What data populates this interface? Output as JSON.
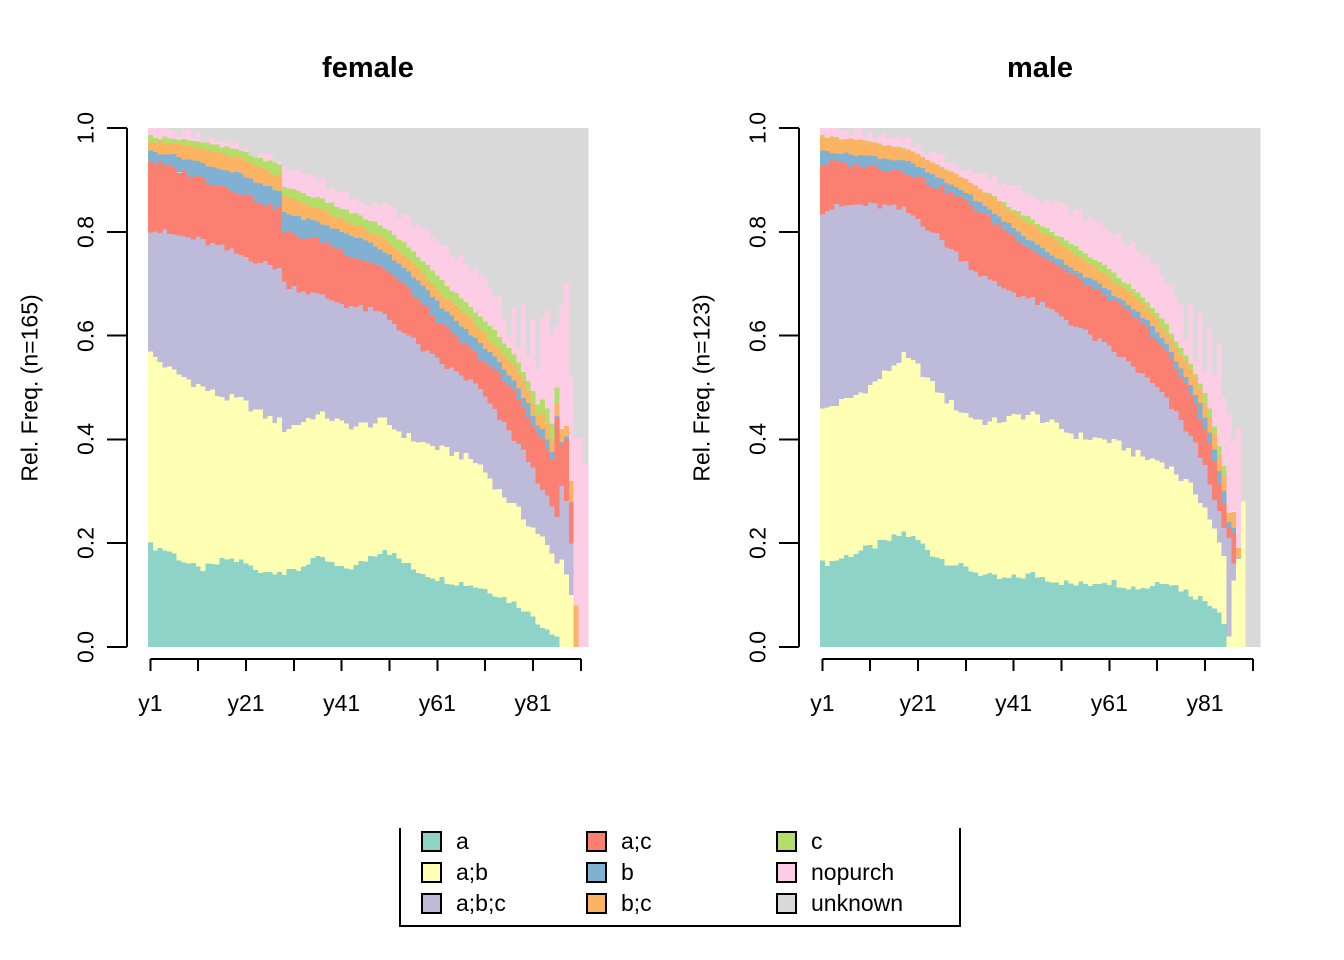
{
  "figure": {
    "description": "Two-panel stacked relative-frequency bar chart (sequence state distribution plot) with shared bottom legend",
    "background": "#ffffff"
  },
  "palette": {
    "a": "#8DD3C7",
    "a;b": "#FFFFB3",
    "a;b;c": "#BEBADA",
    "a;c": "#FB8072",
    "b": "#80B1D3",
    "b;c": "#FDB462",
    "c": "#B3DE69",
    "nopurch": "#FCCDE5",
    "unknown": "#D9D9D9"
  },
  "legend": {
    "rows": [
      [
        "a",
        "a;c",
        "c"
      ],
      [
        "a;b",
        "b",
        "nopurch"
      ],
      [
        "a;b;c",
        "b;c",
        "unknown"
      ]
    ]
  },
  "chart_data": [
    {
      "type": "bar",
      "stacked": true,
      "relative": true,
      "title": "female",
      "ylabel": "Rel. Freq. (n=165)",
      "n": 165,
      "n_columns": 92,
      "x_tick_positions": [
        1,
        11,
        21,
        31,
        41,
        51,
        61,
        71,
        81,
        91
      ],
      "x_tick_labels": {
        "1": "y1",
        "21": "y21",
        "41": "y41",
        "61": "y61",
        "81": "y81"
      },
      "y_ticks": [
        "0.0",
        "0.2",
        "0.4",
        "0.6",
        "0.8",
        "1.0"
      ],
      "ylim": [
        0,
        1
      ],
      "series_order": [
        "a",
        "a;b",
        "a;b;c",
        "a;c",
        "b",
        "b;c",
        "c",
        "nopurch",
        "unknown"
      ],
      "note": "cumulative_keyframes rows = [x, top of a, a;b, a;b;c, a;c, b, b;c, c, nopurch]; unknown fills to 1.0",
      "cumulative_keyframes": [
        [
          1,
          0.195,
          0.565,
          0.805,
          0.935,
          0.955,
          0.975,
          0.985,
          1.0
        ],
        [
          3,
          0.19,
          0.55,
          0.8,
          0.93,
          0.952,
          0.972,
          0.982,
          1.0
        ],
        [
          5,
          0.185,
          0.535,
          0.795,
          0.925,
          0.95,
          0.97,
          0.982,
          0.998
        ],
        [
          8,
          0.165,
          0.52,
          0.79,
          0.915,
          0.942,
          0.965,
          0.978,
          0.99
        ],
        [
          11,
          0.15,
          0.505,
          0.785,
          0.905,
          0.935,
          0.96,
          0.972,
          0.985
        ],
        [
          14,
          0.155,
          0.49,
          0.775,
          0.895,
          0.925,
          0.955,
          0.968,
          0.975
        ],
        [
          17,
          0.17,
          0.48,
          0.765,
          0.885,
          0.918,
          0.948,
          0.962,
          0.968
        ],
        [
          20,
          0.165,
          0.475,
          0.755,
          0.875,
          0.91,
          0.94,
          0.955,
          0.962
        ],
        [
          23,
          0.15,
          0.455,
          0.745,
          0.862,
          0.895,
          0.928,
          0.945,
          0.952
        ],
        [
          26,
          0.145,
          0.44,
          0.735,
          0.85,
          0.885,
          0.915,
          0.935,
          0.945
        ],
        [
          28,
          0.15,
          0.435,
          0.73,
          0.845,
          0.878,
          0.908,
          0.928,
          0.94
        ],
        [
          29,
          0.14,
          0.42,
          0.7,
          0.8,
          0.838,
          0.868,
          0.888,
          0.932
        ],
        [
          32,
          0.15,
          0.43,
          0.69,
          0.79,
          0.828,
          0.858,
          0.878,
          0.92
        ],
        [
          35,
          0.17,
          0.445,
          0.68,
          0.788,
          0.822,
          0.848,
          0.868,
          0.905
        ],
        [
          38,
          0.165,
          0.445,
          0.672,
          0.778,
          0.812,
          0.838,
          0.858,
          0.89
        ],
        [
          41,
          0.15,
          0.43,
          0.662,
          0.765,
          0.8,
          0.825,
          0.845,
          0.878
        ],
        [
          44,
          0.155,
          0.425,
          0.655,
          0.752,
          0.79,
          0.813,
          0.833,
          0.868
        ],
        [
          47,
          0.175,
          0.43,
          0.648,
          0.742,
          0.778,
          0.8,
          0.822,
          0.858
        ],
        [
          50,
          0.19,
          0.435,
          0.64,
          0.73,
          0.762,
          0.785,
          0.808,
          0.85
        ],
        [
          53,
          0.17,
          0.415,
          0.615,
          0.705,
          0.74,
          0.762,
          0.785,
          0.835
        ],
        [
          56,
          0.15,
          0.4,
          0.59,
          0.68,
          0.715,
          0.74,
          0.762,
          0.818
        ],
        [
          59,
          0.14,
          0.39,
          0.565,
          0.65,
          0.685,
          0.71,
          0.735,
          0.8
        ],
        [
          62,
          0.13,
          0.38,
          0.545,
          0.62,
          0.655,
          0.68,
          0.705,
          0.778
        ],
        [
          65,
          0.125,
          0.372,
          0.528,
          0.595,
          0.628,
          0.655,
          0.68,
          0.755
        ],
        [
          68,
          0.12,
          0.362,
          0.512,
          0.572,
          0.602,
          0.63,
          0.655,
          0.732
        ],
        [
          70,
          0.115,
          0.35,
          0.495,
          0.558,
          0.585,
          0.612,
          0.638,
          0.712
        ],
        [
          72,
          0.108,
          0.325,
          0.465,
          0.542,
          0.568,
          0.592,
          0.618,
          0.692
        ],
        [
          74,
          0.1,
          0.3,
          0.44,
          0.522,
          0.548,
          0.573,
          0.598,
          0.67
        ],
        [
          76,
          0.09,
          0.282,
          0.415,
          0.502,
          0.525,
          0.552,
          0.575,
          0.605
        ],
        [
          77,
          0.085,
          0.272,
          0.402,
          0.492,
          0.515,
          0.542,
          0.562,
          0.662
        ],
        [
          78,
          0.08,
          0.262,
          0.39,
          0.478,
          0.498,
          0.525,
          0.548,
          0.585
        ],
        [
          79,
          0.075,
          0.25,
          0.375,
          0.462,
          0.482,
          0.51,
          0.532,
          0.672
        ],
        [
          80,
          0.065,
          0.24,
          0.36,
          0.448,
          0.468,
          0.492,
          0.515,
          0.562
        ],
        [
          81,
          0.06,
          0.23,
          0.34,
          0.428,
          0.448,
          0.47,
          0.492,
          0.642
        ],
        [
          82,
          0.05,
          0.22,
          0.32,
          0.408,
          0.428,
          0.448,
          0.47,
          0.532
        ],
        [
          83,
          0.04,
          0.21,
          0.31,
          0.4,
          0.42,
          0.45,
          0.48,
          0.63
        ],
        [
          84,
          0.035,
          0.195,
          0.29,
          0.38,
          0.4,
          0.43,
          0.46,
          0.65
        ],
        [
          85,
          0.025,
          0.18,
          0.27,
          0.36,
          0.375,
          0.4,
          0.43,
          0.6
        ],
        [
          86,
          0.02,
          0.16,
          0.25,
          0.44,
          0.445,
          0.47,
          0.5,
          0.62
        ],
        [
          87,
          0,
          0.17,
          0.31,
          0.39,
          0.395,
          0.42,
          0.42,
          0.66
        ],
        [
          88,
          0,
          0.14,
          0.28,
          0.4,
          0.405,
          0.425,
          0.425,
          0.7
        ],
        [
          89,
          0,
          0.1,
          0.2,
          0.28,
          0.28,
          0.32,
          0.32,
          0.52
        ],
        [
          90,
          0,
          0,
          0,
          0,
          0,
          0.08,
          0.08,
          0.4
        ],
        [
          91,
          0,
          0,
          0,
          0,
          0,
          0,
          0,
          0.4
        ],
        [
          92,
          0,
          0,
          0,
          0,
          0,
          0,
          0,
          0.35
        ]
      ]
    },
    {
      "type": "bar",
      "stacked": true,
      "relative": true,
      "title": "male",
      "ylabel": "Rel. Freq. (n=123)",
      "n": 123,
      "n_columns": 92,
      "x_tick_positions": [
        1,
        11,
        21,
        31,
        41,
        51,
        61,
        71,
        81,
        91
      ],
      "x_tick_labels": {
        "1": "y1",
        "21": "y21",
        "41": "y41",
        "61": "y61",
        "81": "y81"
      },
      "y_ticks": [
        "0.0",
        "0.2",
        "0.4",
        "0.6",
        "0.8",
        "1.0"
      ],
      "ylim": [
        0,
        1
      ],
      "series_order": [
        "a",
        "a;b",
        "a;b;c",
        "a;c",
        "b",
        "b;c",
        "c",
        "nopurch",
        "unknown"
      ],
      "note": "cumulative_keyframes rows = [x, top of a, a;b, a;b;c, a;c, b, b;c, c, nopurch]; unknown fills to 1.0",
      "cumulative_keyframes": [
        [
          1,
          0.16,
          0.455,
          0.84,
          0.93,
          0.955,
          0.985,
          0.985,
          1.0
        ],
        [
          3,
          0.165,
          0.465,
          0.845,
          0.935,
          0.955,
          0.982,
          0.982,
          1.0
        ],
        [
          6,
          0.175,
          0.475,
          0.85,
          0.93,
          0.95,
          0.978,
          0.978,
          0.995
        ],
        [
          9,
          0.185,
          0.49,
          0.852,
          0.928,
          0.948,
          0.975,
          0.975,
          0.99
        ],
        [
          12,
          0.195,
          0.51,
          0.85,
          0.925,
          0.945,
          0.97,
          0.97,
          0.985
        ],
        [
          15,
          0.205,
          0.535,
          0.848,
          0.92,
          0.94,
          0.965,
          0.965,
          0.98
        ],
        [
          18,
          0.22,
          0.56,
          0.842,
          0.918,
          0.938,
          0.96,
          0.96,
          0.975
        ],
        [
          21,
          0.205,
          0.54,
          0.825,
          0.905,
          0.925,
          0.948,
          0.948,
          0.965
        ],
        [
          24,
          0.18,
          0.505,
          0.8,
          0.89,
          0.91,
          0.932,
          0.932,
          0.952
        ],
        [
          27,
          0.165,
          0.475,
          0.775,
          0.878,
          0.895,
          0.918,
          0.918,
          0.94
        ],
        [
          30,
          0.155,
          0.455,
          0.75,
          0.865,
          0.882,
          0.905,
          0.905,
          0.928
        ],
        [
          33,
          0.145,
          0.44,
          0.725,
          0.845,
          0.862,
          0.888,
          0.888,
          0.915
        ],
        [
          36,
          0.135,
          0.432,
          0.705,
          0.825,
          0.842,
          0.87,
          0.872,
          0.905
        ],
        [
          39,
          0.13,
          0.438,
          0.692,
          0.805,
          0.822,
          0.85,
          0.855,
          0.895
        ],
        [
          42,
          0.135,
          0.445,
          0.68,
          0.785,
          0.8,
          0.83,
          0.838,
          0.885
        ],
        [
          45,
          0.14,
          0.448,
          0.668,
          0.765,
          0.78,
          0.812,
          0.822,
          0.875
        ],
        [
          48,
          0.132,
          0.435,
          0.652,
          0.748,
          0.762,
          0.795,
          0.805,
          0.862
        ],
        [
          51,
          0.125,
          0.42,
          0.638,
          0.73,
          0.745,
          0.775,
          0.788,
          0.85
        ],
        [
          54,
          0.12,
          0.408,
          0.618,
          0.712,
          0.726,
          0.755,
          0.77,
          0.838
        ],
        [
          57,
          0.122,
          0.402,
          0.6,
          0.695,
          0.71,
          0.738,
          0.752,
          0.825
        ],
        [
          60,
          0.128,
          0.4,
          0.582,
          0.678,
          0.692,
          0.72,
          0.735,
          0.81
        ],
        [
          63,
          0.122,
          0.39,
          0.562,
          0.658,
          0.672,
          0.698,
          0.712,
          0.792
        ],
        [
          66,
          0.115,
          0.375,
          0.54,
          0.638,
          0.652,
          0.675,
          0.69,
          0.772
        ],
        [
          69,
          0.115,
          0.362,
          0.515,
          0.612,
          0.628,
          0.65,
          0.665,
          0.748
        ],
        [
          71,
          0.125,
          0.36,
          0.498,
          0.592,
          0.608,
          0.63,
          0.645,
          0.728
        ],
        [
          73,
          0.128,
          0.352,
          0.475,
          0.565,
          0.582,
          0.605,
          0.62,
          0.705
        ],
        [
          75,
          0.118,
          0.335,
          0.448,
          0.535,
          0.552,
          0.578,
          0.59,
          0.678
        ],
        [
          76,
          0.112,
          0.325,
          0.435,
          0.52,
          0.538,
          0.562,
          0.575,
          0.665
        ],
        [
          77,
          0.108,
          0.318,
          0.42,
          0.505,
          0.522,
          0.548,
          0.56,
          0.6
        ],
        [
          78,
          0.102,
          0.308,
          0.405,
          0.488,
          0.505,
          0.532,
          0.545,
          0.67
        ],
        [
          79,
          0.098,
          0.298,
          0.388,
          0.468,
          0.488,
          0.515,
          0.528,
          0.56
        ],
        [
          80,
          0.095,
          0.285,
          0.368,
          0.445,
          0.468,
          0.495,
          0.51,
          0.645
        ],
        [
          81,
          0.09,
          0.268,
          0.345,
          0.42,
          0.445,
          0.472,
          0.488,
          0.54
        ],
        [
          82,
          0.085,
          0.248,
          0.318,
          0.39,
          0.415,
          0.445,
          0.462,
          0.615
        ],
        [
          83,
          0.078,
          0.225,
          0.29,
          0.355,
          0.38,
          0.41,
          0.428,
          0.52
        ],
        [
          84,
          0.068,
          0.2,
          0.26,
          0.315,
          0.34,
          0.37,
          0.388,
          0.585
        ],
        [
          85,
          0.045,
          0.175,
          0.228,
          0.275,
          0.3,
          0.33,
          0.348,
          0.48
        ],
        [
          86,
          0,
          0.02,
          0.21,
          0.23,
          0.24,
          0.26,
          0.26,
          0.45
        ],
        [
          87,
          0,
          0.13,
          0.16,
          0.22,
          0.23,
          0.26,
          0.26,
          0.4
        ],
        [
          88,
          0,
          0.17,
          0.17,
          0.17,
          0.17,
          0.19,
          0.19,
          0.42
        ],
        [
          89,
          0,
          0.28,
          0.28,
          0.28,
          0.28,
          0.28,
          0.28,
          0.28
        ],
        [
          90,
          0,
          0,
          0,
          0,
          0,
          0,
          0,
          0
        ],
        [
          91,
          0,
          0,
          0,
          0,
          0,
          0,
          0,
          0
        ],
        [
          92,
          0,
          0,
          0,
          0,
          0,
          0,
          0,
          0
        ]
      ]
    }
  ]
}
